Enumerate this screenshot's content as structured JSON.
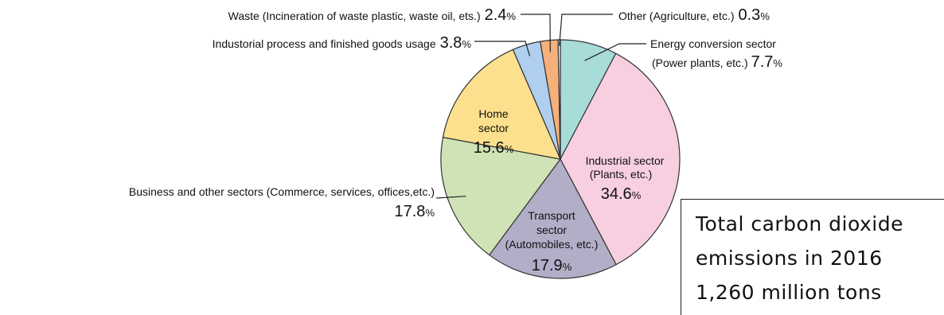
{
  "chart_data": {
    "type": "pie",
    "title": "",
    "unit": "%",
    "start": "12 o'clock",
    "direction": "clockwise",
    "slices": [
      {
        "label": [
          "Energy conversion sector",
          "(Power plants, etc.)"
        ],
        "value": 7.7,
        "value_text": "7.7",
        "color": "#a8dcd9"
      },
      {
        "label": [
          "Industrial sector",
          "(Plants, etc.)"
        ],
        "value": 34.6,
        "value_text": "34.6",
        "color": "#f7cfe0"
      },
      {
        "label": [
          "Transport",
          "sector",
          "(Automobiles, etc.)"
        ],
        "value": 17.9,
        "value_text": "17.9",
        "color": "#b3aec7"
      },
      {
        "label": [
          "Business and other sectors (Commerce, services, offices,etc.)"
        ],
        "value": 17.8,
        "value_text": "17.8",
        "color": "#cfe3b6"
      },
      {
        "label": [
          "Home",
          "sector"
        ],
        "value": 15.6,
        "value_text": "15.6",
        "color": "#fde08e"
      },
      {
        "label": [
          "Industorial process and finished goods usage"
        ],
        "value": 3.8,
        "value_text": "3.8",
        "color": "#b0cfee"
      },
      {
        "label": [
          "Waste (Incineration of waste plastic, waste oil, ets.)"
        ],
        "value": 2.4,
        "value_text": "2.4",
        "color": "#f6b07b"
      },
      {
        "label": [
          "Other (Agriculture, etc.)"
        ],
        "value": 0.3,
        "value_text": "0.3",
        "color": "#ffffff"
      }
    ]
  },
  "total": {
    "line1": "Total carbon dioxide",
    "line2": "emissions in 2016",
    "line3": "1,260 million tons"
  }
}
